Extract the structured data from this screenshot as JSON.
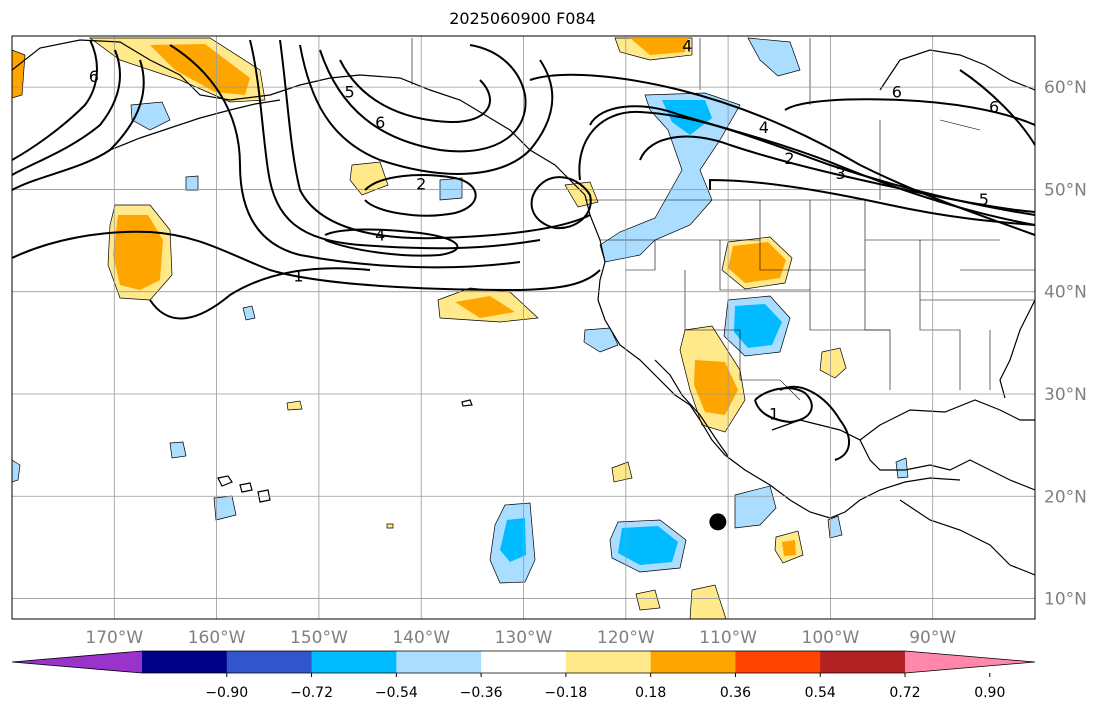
{
  "title": "2025060900 F084",
  "map": {
    "projection": "cylindrical",
    "lon_range": [
      -180,
      -80
    ],
    "lat_range": [
      8,
      65
    ],
    "lon_ticks": [
      {
        "value": -170,
        "label": "170°W"
      },
      {
        "value": -160,
        "label": "160°W"
      },
      {
        "value": -150,
        "label": "150°W"
      },
      {
        "value": -140,
        "label": "140°W"
      },
      {
        "value": -130,
        "label": "130°W"
      },
      {
        "value": -120,
        "label": "120°W"
      },
      {
        "value": -110,
        "label": "110°W"
      },
      {
        "value": -100,
        "label": "100°W"
      },
      {
        "value": -90,
        "label": "90°W"
      }
    ],
    "lat_ticks": [
      {
        "value": 60,
        "label": "60°N"
      },
      {
        "value": 50,
        "label": "50°N"
      },
      {
        "value": 40,
        "label": "40°N"
      },
      {
        "value": 30,
        "label": "30°N"
      },
      {
        "value": 20,
        "label": "20°N"
      },
      {
        "value": 10,
        "label": "10°N"
      }
    ],
    "grid": true,
    "marker": {
      "lon": -111,
      "lat": 17.5
    }
  },
  "contour_labels": [
    {
      "text": "1",
      "lon": -152,
      "lat": 41
    },
    {
      "text": "2",
      "lon": -140,
      "lat": 50
    },
    {
      "text": "4",
      "lon": -144,
      "lat": 45
    },
    {
      "text": "6",
      "lon": -144,
      "lat": 56
    },
    {
      "text": "5",
      "lon": -147,
      "lat": 59
    },
    {
      "text": "6",
      "lon": -172,
      "lat": 60.5
    },
    {
      "text": "4",
      "lon": -114,
      "lat": 63.5
    },
    {
      "text": "4",
      "lon": -106.5,
      "lat": 55.5
    },
    {
      "text": "2",
      "lon": -104,
      "lat": 52.5
    },
    {
      "text": "3",
      "lon": -99,
      "lat": 51
    },
    {
      "text": "6",
      "lon": -93.5,
      "lat": 59
    },
    {
      "text": "6",
      "lon": -84,
      "lat": 57.5
    },
    {
      "text": "5",
      "lon": -85,
      "lat": 48.5
    },
    {
      "text": "1",
      "lon": -105.5,
      "lat": 27.5
    }
  ],
  "colorbar": {
    "colors": [
      "#9933cc",
      "#000088",
      "#3355cc",
      "#00bbff",
      "#aaddff",
      "#ffffff",
      "#ffe98a",
      "#ffa500",
      "#ff4400",
      "#b22222",
      "#ff88aa"
    ],
    "tick_labels": [
      "−0.90",
      "−0.72",
      "−0.54",
      "−0.36",
      "−0.18",
      "0.18",
      "0.36",
      "0.54",
      "0.72",
      "0.90"
    ],
    "levels": [
      -0.9,
      -0.72,
      -0.54,
      -0.36,
      -0.18,
      0.18,
      0.36,
      0.54,
      0.72,
      0.9
    ],
    "extend": "both"
  }
}
